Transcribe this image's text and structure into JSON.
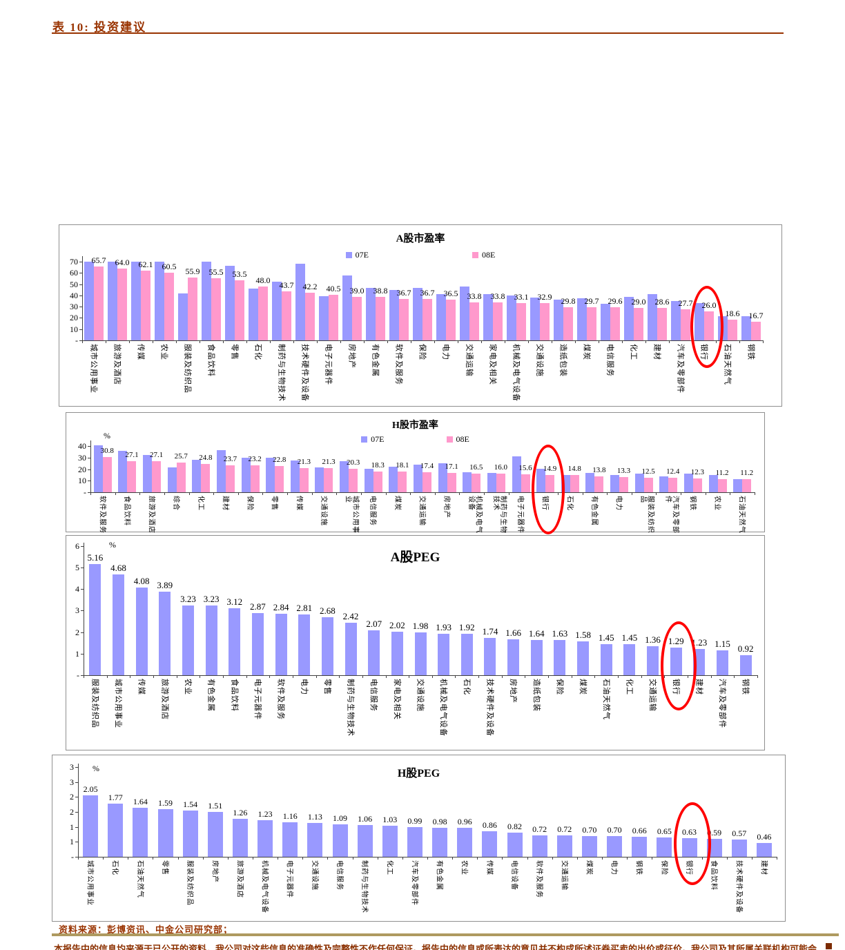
{
  "page": {
    "table_label": "表 10: 投资建议",
    "source_note": "资料来源：彭博资讯、中金公司研究部；",
    "disclaimer": "本报告中的信息均来源于已公开的资料，我公司对这些信息的准确性及完整性不作任何保证。报告中的信息或所表达的意见并不构成所述证券买卖的出价或征价。我公司及其所属关联机构可能会持有报告中提到的公司所发行的证券头寸并进行交易。",
    "accent_color": "#993300",
    "divider_color": "#AE9A60",
    "highlight_color": "#FF0000",
    "palette": [
      "#9999FF",
      "#FF99CC"
    ]
  },
  "chart_data": [
    {
      "type": "bar",
      "title": "A股市盈率",
      "legend": [
        "07E",
        "08E"
      ],
      "unit_label": "",
      "ylim": [
        0,
        70
      ],
      "ytick_labels": [
        "-",
        "10",
        "20",
        "30",
        "40",
        "50",
        "60",
        "70"
      ],
      "label_decimals": 1,
      "highlight_category": "银行",
      "categories": [
        "城市公用事业",
        "旅游及酒店",
        "传媒",
        "农业",
        "服装及纺织品",
        "食品饮料",
        "零售",
        "石化",
        "制药与生物技术",
        "技术硬件及设备",
        "电子元器件",
        "房地产",
        "有色金属",
        "软件及服务",
        "保险",
        "电力",
        "交通运输",
        "家电及相关",
        "机械及电气设备",
        "交通设施",
        "造纸包装",
        "煤炭",
        "电信服务",
        "化工",
        "建材",
        "汽车及零部件",
        "银行",
        "石油天然气",
        "钢铁"
      ],
      "series": [
        {
          "name": "07E",
          "values": [
            70,
            70,
            70,
            70,
            42,
            70,
            66.5,
            46,
            52.5,
            68,
            39.5,
            57.5,
            46.5,
            45,
            47,
            41,
            48,
            41,
            40,
            38,
            36,
            37.5,
            32.5,
            38.5,
            41,
            35,
            33,
            21.5,
            21.5
          ]
        },
        {
          "name": "08E",
          "values": [
            65.7,
            64.0,
            62.1,
            60.5,
            55.9,
            55.5,
            53.5,
            48.0,
            43.7,
            42.2,
            40.5,
            39.0,
            38.8,
            36.7,
            36.7,
            36.5,
            33.8,
            33.8,
            33.1,
            32.9,
            29.8,
            29.7,
            29.6,
            29.0,
            28.6,
            27.7,
            26.0,
            18.6,
            16.7
          ]
        }
      ]
    },
    {
      "type": "bar",
      "title": "H股市盈率",
      "legend": [
        "07E",
        "08E"
      ],
      "unit_label": "%",
      "ylim": [
        0,
        40
      ],
      "ytick_labels": [
        "-",
        "10",
        "20",
        "30",
        "40"
      ],
      "label_decimals": 1,
      "highlight_category": "银行",
      "categories": [
        "软件及服务",
        "食品饮料",
        "旅游及酒店",
        "综合",
        "化工",
        "建材",
        "保险",
        "零售",
        "传媒",
        "交通设施",
        "城市公用事业",
        "电信服务",
        "煤炭",
        "交通运输",
        "房地产",
        "机械及电气设备",
        "制药与生物技术",
        "电子元器件",
        "银行",
        "石化",
        "有色金属",
        "电力",
        "服装及纺织品",
        "汽车及零部件",
        "钢铁",
        "农业",
        "石油天然气"
      ],
      "series": [
        {
          "name": "07E",
          "values": [
            41,
            36,
            32.5,
            21.7,
            28,
            36.5,
            30,
            30,
            27.8,
            21.8,
            27.3,
            20.4,
            22.2,
            23.8,
            25.5,
            17.3,
            17,
            31.2,
            20.4,
            15,
            16.7,
            15.1,
            16.5,
            14.1,
            16.1,
            15.3,
            11.4
          ]
        },
        {
          "name": "08E",
          "values": [
            30.8,
            27.1,
            27.1,
            25.7,
            24.8,
            23.7,
            23.2,
            22.8,
            21.3,
            21.3,
            20.3,
            18.3,
            18.1,
            17.4,
            17.1,
            16.5,
            16.0,
            15.6,
            14.9,
            14.8,
            13.8,
            13.3,
            12.5,
            12.4,
            12.3,
            11.2,
            11.2
          ]
        }
      ]
    },
    {
      "type": "bar",
      "title": "A股PEG",
      "legend": null,
      "unit_label": "%",
      "ylim": [
        0,
        6
      ],
      "ytick_labels": [
        "-",
        "1",
        "2",
        "3",
        "4",
        "5",
        "6"
      ],
      "label_decimals": 2,
      "highlight_category": "银行",
      "categories": [
        "服装及纺织品",
        "城市公用事业",
        "传媒",
        "旅游及酒店",
        "农业",
        "有色金属",
        "食品饮料",
        "电子元器件",
        "软件及服务",
        "电力",
        "零售",
        "制药与生物技术",
        "电信服务",
        "家电及相关",
        "交通设施",
        "机械及电气设备",
        "石化",
        "技术硬件及设备",
        "房地产",
        "造纸包装",
        "保险",
        "煤炭",
        "石油天然气",
        "化工",
        "交通运输",
        "银行",
        "建材",
        "汽车及零部件",
        "钢铁"
      ],
      "series": [
        {
          "name": "PEG",
          "values": [
            5.16,
            4.68,
            4.08,
            3.89,
            3.23,
            3.23,
            3.12,
            2.87,
            2.84,
            2.81,
            2.68,
            2.42,
            2.07,
            2.02,
            1.98,
            1.93,
            1.92,
            1.74,
            1.66,
            1.64,
            1.63,
            1.58,
            1.45,
            1.45,
            1.36,
            1.29,
            1.23,
            1.15,
            0.92
          ]
        }
      ]
    },
    {
      "type": "bar",
      "title": "H股PEG",
      "legend": null,
      "unit_label": "%",
      "ylim": [
        0,
        3
      ],
      "ytick_labels": [
        "-",
        "1",
        "1",
        "2",
        "2",
        "3",
        "3"
      ],
      "label_decimals": 2,
      "highlight_category": "银行",
      "categories": [
        "城市公用事业",
        "石化",
        "石油天然气",
        "零售",
        "服装及纺织品",
        "房地产",
        "旅游及酒店",
        "机械及电气设备",
        "电子元器件",
        "交通设施",
        "电信服务",
        "制药与生物技术",
        "化工",
        "汽车及零部件",
        "有色金属",
        "农业",
        "传媒",
        "电信设备",
        "软件及服务",
        "交通运输",
        "煤炭",
        "电力",
        "钢铁",
        "保险",
        "银行",
        "食品饮料",
        "技术硬件及设备",
        "建材"
      ],
      "series": [
        {
          "name": "PEG",
          "values": [
            2.05,
            1.77,
            1.64,
            1.59,
            1.54,
            1.51,
            1.26,
            1.23,
            1.16,
            1.13,
            1.09,
            1.06,
            1.03,
            0.99,
            0.98,
            0.96,
            0.86,
            0.82,
            0.72,
            0.72,
            0.7,
            0.7,
            0.66,
            0.65,
            0.63,
            0.59,
            0.57,
            0.46
          ]
        }
      ]
    }
  ]
}
